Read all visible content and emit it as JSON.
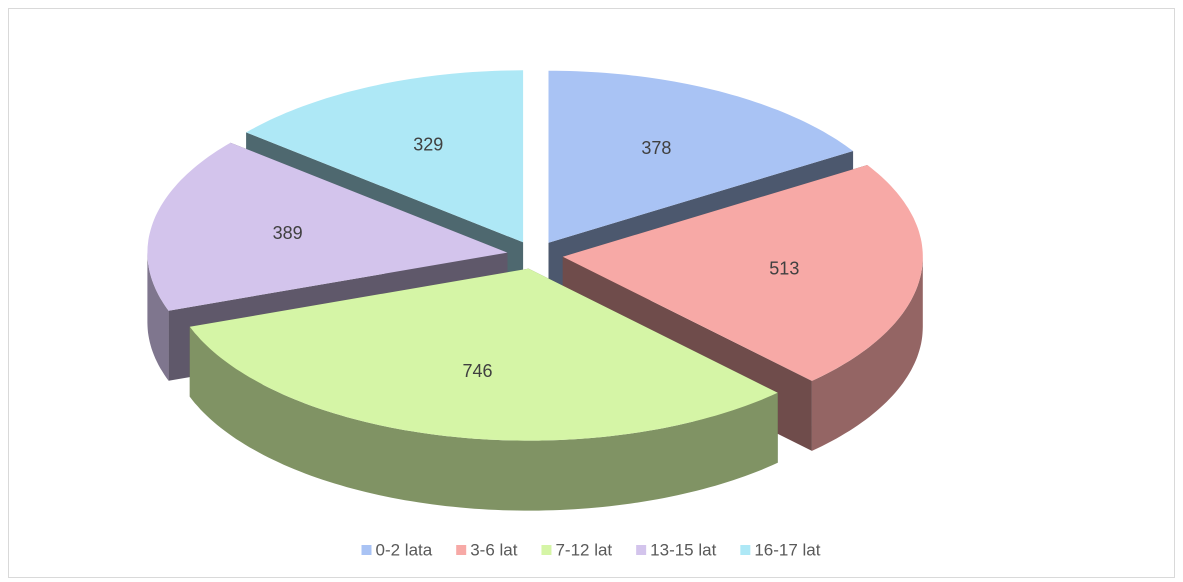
{
  "chart_data": {
    "type": "pie",
    "categories": [
      "0-2 lata",
      "3-6 lat",
      "7-12 lat",
      "13-15 lat",
      "16-17 lat"
    ],
    "values": [
      378,
      513,
      746,
      389,
      329
    ],
    "colors": [
      "#a9c3f4",
      "#f7a9a6",
      "#d5f5a6",
      "#d3c4ec",
      "#aee8f6"
    ],
    "exploded": true,
    "three_d": true,
    "legend": "bottom"
  }
}
